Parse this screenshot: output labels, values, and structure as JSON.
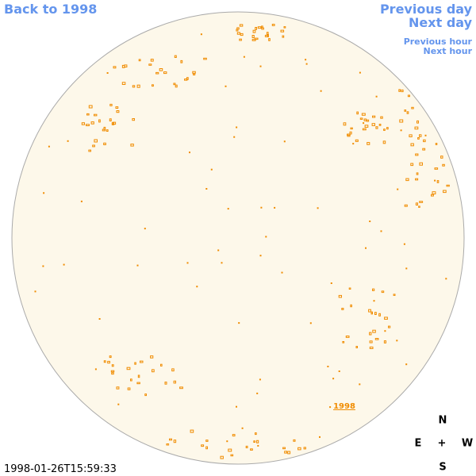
{
  "nav": {
    "back": "Back to 1998",
    "previous_day": "Previous day",
    "next_day": "Next day",
    "previous_hour": "Previous hour",
    "next_hour": "Next hour"
  },
  "timestamp": "1998-01-26T15:59:33",
  "disk_label": "1998",
  "compass": {
    "north": "N",
    "east": "E",
    "center": "+",
    "west": "W",
    "south": "S"
  }
}
